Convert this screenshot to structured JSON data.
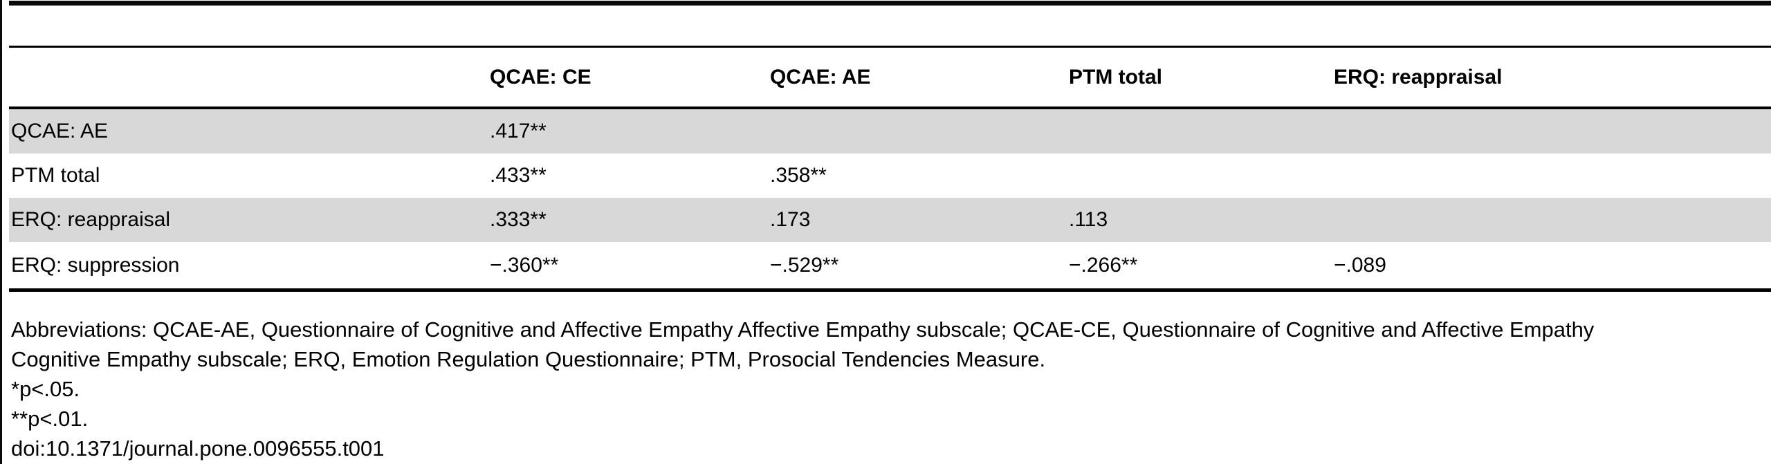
{
  "table": {
    "header": [
      "",
      "QCAE: CE",
      "QCAE: AE",
      "PTM total",
      "ERQ: reappraisal"
    ],
    "rows": [
      {
        "label": "QCAE: AE",
        "values": [
          ".417**",
          "",
          "",
          ""
        ]
      },
      {
        "label": "PTM total",
        "values": [
          ".433**",
          ".358**",
          "",
          ""
        ]
      },
      {
        "label": "ERQ: reappraisal",
        "values": [
          ".333**",
          ".173",
          ".113",
          ""
        ]
      },
      {
        "label": "ERQ: suppression",
        "values": [
          "−.360**",
          "−.529**",
          "−.266**",
          "−.089"
        ]
      }
    ]
  },
  "footnotes": {
    "line1": "Abbreviations: QCAE-AE, Questionnaire of Cognitive and Affective Empathy Affective Empathy subscale; QCAE-CE, Questionnaire of Cognitive and Affective Empathy",
    "line2": "Cognitive Empathy subscale; ERQ, Emotion Regulation Questionnaire; PTM, Prosocial Tendencies Measure.",
    "sig_05": "*p<.05.",
    "sig_01": "**p<.01.",
    "doi": "doi:10.1371/journal.pone.0096555.t001"
  },
  "colors": {
    "stripe": "#d8d8d8",
    "rule": "#000000",
    "text": "#000000"
  }
}
